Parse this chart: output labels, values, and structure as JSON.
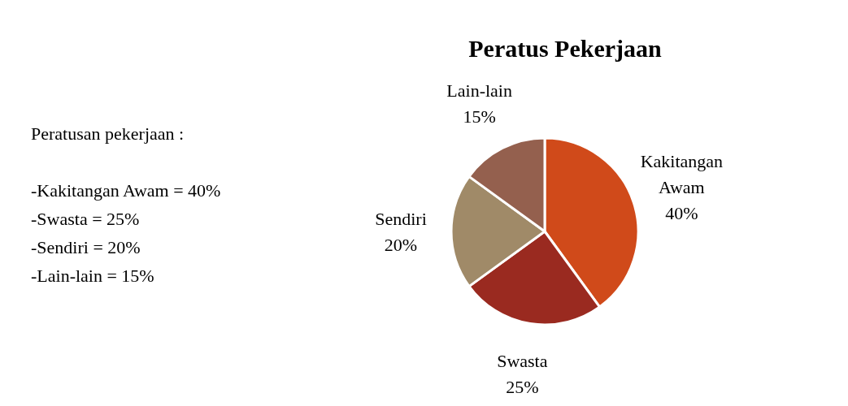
{
  "chart_data": {
    "type": "pie",
    "title": "Peratus Pekerjaan",
    "categories": [
      "Kakitangan Awam",
      "Swasta",
      "Sendiri",
      "Lain-lain"
    ],
    "values": [
      40,
      25,
      20,
      15
    ],
    "value_labels": [
      "40%",
      "25%",
      "20%",
      "15%"
    ],
    "colors": [
      "#d04a1a",
      "#9a2a20",
      "#a08a68",
      "#94604e"
    ],
    "annotations": [
      "Peratusan pekerjaan :",
      "-Kakitangan Awam = 40%",
      "-Swasta = 25%",
      "-Sendiri = 20%",
      "-Lain-lain = 15%"
    ]
  }
}
